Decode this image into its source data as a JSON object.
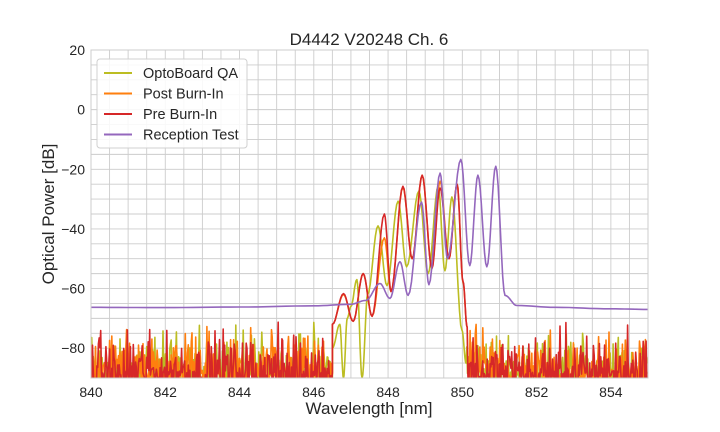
{
  "chart_data": {
    "type": "line",
    "title": "D4442 V20248 Ch. 6",
    "xlabel": "Wavelength [nm]",
    "ylabel": "Optical Power [dB]",
    "xlim": [
      840,
      855
    ],
    "ylim": [
      -90,
      20
    ],
    "xticks": [
      840,
      842,
      844,
      846,
      848,
      850,
      852,
      854
    ],
    "yticks": [
      20,
      0,
      -20,
      -40,
      -60,
      -80
    ],
    "xtick_labels": [
      "840",
      "842",
      "844",
      "846",
      "848",
      "850",
      "852",
      "854"
    ],
    "ytick_labels": [
      "20",
      "0",
      "−20",
      "−40",
      "−60",
      "−80"
    ],
    "grid": true,
    "minor_grid": {
      "x_step": 0.5,
      "y_step": 5
    },
    "legend_position": "top-left",
    "series": [
      {
        "name": "OptoBoard QA",
        "color": "#bcbd22",
        "noisy_floor": true,
        "points": [
          [
            846.5,
            -80
          ],
          [
            846.7,
            -72
          ],
          [
            846.8,
            -90
          ],
          [
            846.9,
            -70
          ],
          [
            847.0,
            -66
          ],
          [
            847.16,
            -57
          ],
          [
            847.3,
            -90
          ],
          [
            847.45,
            -62
          ],
          [
            847.73,
            -39
          ],
          [
            847.97,
            -59
          ],
          [
            848.27,
            -30.7
          ],
          [
            848.5,
            -52.7
          ],
          [
            848.83,
            -27.3
          ],
          [
            849.08,
            -55
          ],
          [
            849.35,
            -25.7
          ],
          [
            849.53,
            -54
          ],
          [
            849.72,
            -29.3
          ],
          [
            849.99,
            -74
          ],
          [
            850.1,
            -85
          ]
        ]
      },
      {
        "name": "Post Burn-In",
        "color": "#ff7f0e",
        "noisy_floor": true,
        "points": [
          [
            846.5,
            -72
          ],
          [
            846.8,
            -62
          ],
          [
            847.06,
            -71
          ],
          [
            847.33,
            -55
          ],
          [
            847.57,
            -69.3
          ],
          [
            847.9,
            -43
          ],
          [
            848.08,
            -61
          ],
          [
            848.4,
            -26
          ],
          [
            848.65,
            -50
          ],
          [
            848.92,
            -22
          ],
          [
            849.18,
            -53
          ],
          [
            849.4,
            -24
          ],
          [
            849.64,
            -50
          ],
          [
            849.86,
            -25
          ],
          [
            850.02,
            -58
          ],
          [
            850.13,
            -73
          ]
        ]
      },
      {
        "name": "Pre Burn-In",
        "color": "#d62728",
        "noisy_floor": true,
        "points": [
          [
            846.5,
            -72
          ],
          [
            846.8,
            -61.7
          ],
          [
            847.06,
            -71
          ],
          [
            847.33,
            -55
          ],
          [
            847.57,
            -69.3
          ],
          [
            847.9,
            -35
          ],
          [
            848.08,
            -61
          ],
          [
            848.4,
            -25.7
          ],
          [
            848.65,
            -50
          ],
          [
            848.92,
            -22
          ],
          [
            849.18,
            -53.3
          ],
          [
            849.4,
            -26.3
          ],
          [
            849.64,
            -50
          ],
          [
            849.86,
            -25
          ],
          [
            850.02,
            -57.7
          ],
          [
            850.13,
            -73
          ]
        ]
      },
      {
        "name": "Reception Test",
        "color": "#9467bd",
        "noisy_floor": false,
        "points": [
          [
            840,
            -66.3
          ],
          [
            842,
            -66.4
          ],
          [
            844,
            -66.2
          ],
          [
            846,
            -65.8
          ],
          [
            846.98,
            -65.3
          ],
          [
            847.4,
            -64
          ],
          [
            847.78,
            -58.3
          ],
          [
            848.05,
            -63.3
          ],
          [
            848.32,
            -51
          ],
          [
            848.54,
            -62.3
          ],
          [
            848.9,
            -31
          ],
          [
            849.1,
            -58.7
          ],
          [
            849.4,
            -21.3
          ],
          [
            849.6,
            -50
          ],
          [
            849.96,
            -16.7
          ],
          [
            850.2,
            -52.3
          ],
          [
            850.42,
            -22
          ],
          [
            850.66,
            -52.7
          ],
          [
            850.9,
            -19
          ],
          [
            851.15,
            -62.3
          ],
          [
            851.47,
            -65.7
          ],
          [
            852.5,
            -66.3
          ],
          [
            854,
            -66.8
          ],
          [
            855,
            -67
          ]
        ]
      }
    ]
  }
}
